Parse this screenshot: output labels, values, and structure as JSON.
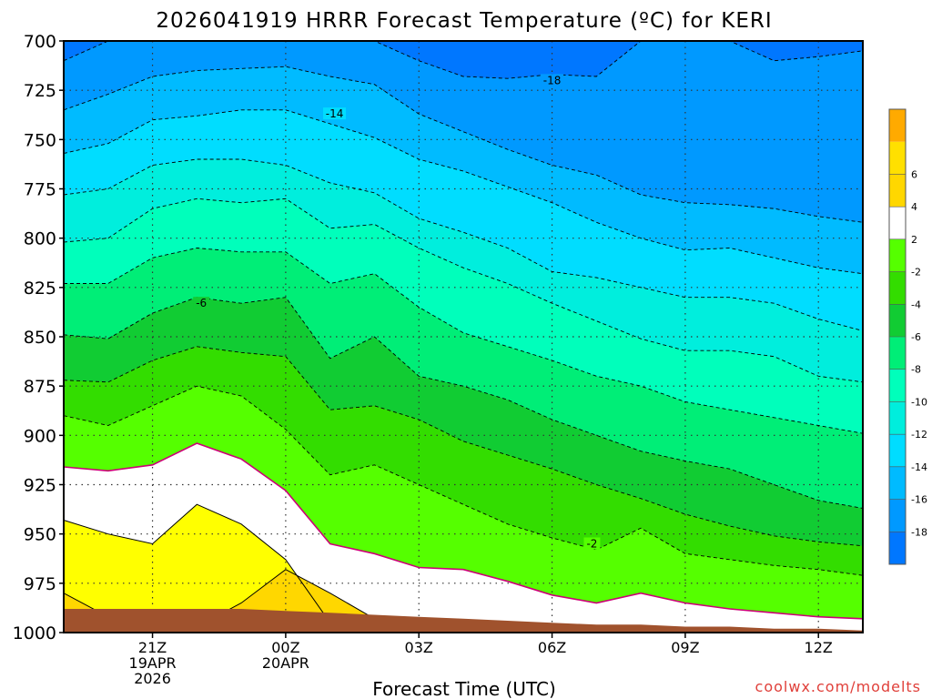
{
  "chart_data": {
    "type": "contour",
    "title": "2026041919 HRRR Forecast Temperature (ºC) for KERI",
    "xlabel": "Forecast Time (UTC)",
    "credit": "coolwx.com/modelts",
    "x_hours": [
      19,
      20,
      21,
      22,
      23,
      24,
      25,
      26,
      27,
      28,
      29,
      30,
      31,
      32,
      33,
      34,
      35,
      36,
      37
    ],
    "xlim": [
      19,
      37
    ],
    "ylim": [
      700,
      1000
    ],
    "yticks": [
      700,
      725,
      750,
      775,
      800,
      825,
      850,
      875,
      900,
      925,
      950,
      975,
      1000
    ],
    "xticks": [
      {
        "hour": 21,
        "lines": [
          "21Z",
          "19APR",
          "2026"
        ]
      },
      {
        "hour": 24,
        "lines": [
          "00Z",
          "20APR"
        ]
      },
      {
        "hour": 27,
        "lines": [
          "03Z"
        ]
      },
      {
        "hour": 30,
        "lines": [
          "06Z"
        ]
      },
      {
        "hour": 33,
        "lines": [
          "09Z"
        ]
      },
      {
        "hour": 36,
        "lines": [
          "12Z"
        ]
      }
    ],
    "contour_levels": [
      {
        "level": 4,
        "color": "#ffd700",
        "style": "solid",
        "p": [
          980,
          992,
          995,
          997,
          985,
          968,
          980,
          993,
          999,
          1000,
          1000,
          1000,
          1000,
          1000,
          1000,
          1000,
          1000,
          1000,
          1000
        ]
      },
      {
        "level": 2,
        "color": "#ffff00",
        "style": "solid",
        "p": [
          943,
          950,
          955,
          935,
          945,
          963,
          995,
          999,
          997,
          999,
          999,
          999,
          1000,
          1000,
          1000,
          1000,
          1000,
          1000,
          1000
        ]
      },
      {
        "level": 0,
        "color": "#ffffff",
        "style": "magenta",
        "p": [
          916,
          918,
          915,
          904,
          912,
          928,
          955,
          960,
          967,
          968,
          974,
          981,
          985,
          980,
          985,
          988,
          990,
          992,
          993
        ]
      },
      {
        "level": -2,
        "color": "#55ff00",
        "style": "dashed",
        "p": [
          890,
          895,
          885,
          875,
          880,
          897,
          920,
          915,
          925,
          935,
          945,
          952,
          958,
          947,
          960,
          963,
          966,
          968,
          971
        ]
      },
      {
        "level": -4,
        "color": "#33dd00",
        "style": "dashed",
        "p": [
          872,
          873,
          862,
          855,
          858,
          860,
          887,
          885,
          892,
          903,
          910,
          917,
          925,
          932,
          940,
          946,
          951,
          954,
          956
        ]
      },
      {
        "level": -6,
        "color": "#11cc33",
        "style": "dashed",
        "p": [
          849,
          851,
          838,
          830,
          833,
          830,
          861,
          850,
          870,
          875,
          882,
          892,
          900,
          908,
          913,
          917,
          925,
          933,
          937
        ]
      },
      {
        "level": -8,
        "color": "#00ee77",
        "style": "dashed",
        "p": [
          823,
          823,
          810,
          805,
          807,
          807,
          823,
          818,
          835,
          848,
          855,
          862,
          870,
          875,
          883,
          887,
          891,
          895,
          899
        ]
      },
      {
        "level": -10,
        "color": "#00ffbb",
        "style": "dashed",
        "p": [
          802,
          800,
          785,
          780,
          782,
          780,
          795,
          793,
          805,
          815,
          823,
          833,
          842,
          851,
          857,
          857,
          860,
          870,
          873
        ]
      },
      {
        "level": -12,
        "color": "#00eedd",
        "style": "dashed",
        "p": [
          778,
          775,
          763,
          760,
          760,
          763,
          772,
          777,
          790,
          797,
          805,
          817,
          820,
          825,
          830,
          830,
          833,
          841,
          847
        ]
      },
      {
        "level": -14,
        "color": "#00ddff",
        "style": "dashed",
        "p": [
          757,
          752,
          740,
          738,
          735,
          735,
          742,
          749,
          760,
          766,
          774,
          782,
          792,
          800,
          806,
          805,
          810,
          815,
          818
        ]
      },
      {
        "level": -16,
        "color": "#00bbff",
        "style": "dashed",
        "p": [
          735,
          727,
          718,
          715,
          714,
          713,
          718,
          722,
          737,
          746,
          755,
          763,
          768,
          778,
          782,
          783,
          785,
          789,
          792
        ]
      },
      {
        "level": -18,
        "color": "#0099ff",
        "style": "dashed",
        "p": [
          710,
          700,
          700,
          700,
          700,
          700,
          700,
          700,
          710,
          718,
          719,
          717,
          718,
          700,
          700,
          700,
          710,
          708,
          705
        ]
      }
    ],
    "top_fill_color": "#0077ff",
    "ground_color": "#a0522d",
    "ground_p": [
      988,
      988,
      988,
      988,
      988,
      989,
      990,
      991,
      992,
      993,
      994,
      995,
      996,
      996,
      997,
      997,
      998,
      998,
      999
    ],
    "contour_labels": [
      {
        "text": "-18",
        "hour": 30.0,
        "p": 720
      },
      {
        "text": "-14",
        "hour": 25.1,
        "p": 737
      },
      {
        "text": "-6",
        "hour": 22.1,
        "p": 833
      },
      {
        "text": "-2",
        "hour": 30.9,
        "p": 955
      }
    ],
    "colorbar": {
      "colors": [
        "#0077ff",
        "#0099ff",
        "#00bbff",
        "#00ddff",
        "#00eedd",
        "#00ffbb",
        "#00ee77",
        "#11cc33",
        "#33dd00",
        "#55ff00",
        "#ffffff",
        "#ffd700",
        "#ffe000",
        "#ffaa00"
      ],
      "labels": [
        "-18",
        "-16",
        "-14",
        "-12",
        "-10",
        "-8",
        "-6",
        "-4",
        "-2",
        "2",
        "4",
        "6"
      ]
    }
  }
}
